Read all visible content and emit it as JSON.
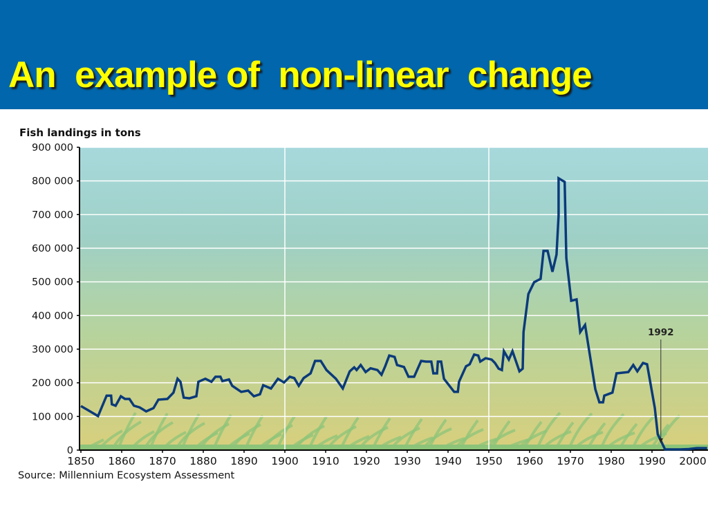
{
  "slide": {
    "title": "An  example of  non-linear  change",
    "accent_color": "#0166AB",
    "title_color": "#FFFF00"
  },
  "chart_data": {
    "type": "line",
    "title": "",
    "ylabel": "Fish landings in tons",
    "xlabel": "",
    "source": "Source: Millennium Ecosystem Assessment",
    "xlim": [
      1850,
      2003.5
    ],
    "ylim": [
      0,
      900000
    ],
    "x_ticks": [
      "1850",
      "1860",
      "1870",
      "1880",
      "1890",
      "1900",
      "1910",
      "1920",
      "1930",
      "1940",
      "1950",
      "1960",
      "1970",
      "1980",
      "1990",
      "2000"
    ],
    "y_ticks": [
      "0",
      "100 000",
      "200 000",
      "300 000",
      "400 000",
      "500 000",
      "600 000",
      "700 000",
      "800 000",
      "900 000"
    ],
    "grid": {
      "horizontal": true,
      "vertical_years": [
        1900,
        1950
      ]
    },
    "line_color": "#0B3A7A",
    "annotation": {
      "label": "1992",
      "year": 1992
    },
    "series": [
      {
        "name": "Fish landings",
        "points": [
          [
            1850,
            131000
          ],
          [
            1852,
            117000
          ],
          [
            1854.2,
            101000
          ],
          [
            1856.3,
            162000
          ],
          [
            1857.4,
            162000
          ],
          [
            1857.6,
            136000
          ],
          [
            1858.5,
            132000
          ],
          [
            1859.8,
            160000
          ],
          [
            1860.8,
            152000
          ],
          [
            1861.9,
            152000
          ],
          [
            1863,
            132000
          ],
          [
            1864.4,
            127000
          ],
          [
            1866,
            115000
          ],
          [
            1867.8,
            125000
          ],
          [
            1869,
            150000
          ],
          [
            1871.2,
            152000
          ],
          [
            1872.7,
            171000
          ],
          [
            1873.7,
            212000
          ],
          [
            1874.4,
            203000
          ],
          [
            1875.2,
            156000
          ],
          [
            1876.6,
            154000
          ],
          [
            1878.3,
            160000
          ],
          [
            1878.8,
            203000
          ],
          [
            1880.5,
            212000
          ],
          [
            1882,
            203000
          ],
          [
            1883,
            218000
          ],
          [
            1884.2,
            218000
          ],
          [
            1884.7,
            205000
          ],
          [
            1886.3,
            210000
          ],
          [
            1887.1,
            191000
          ],
          [
            1889.3,
            173000
          ],
          [
            1891,
            177000
          ],
          [
            1892.4,
            160000
          ],
          [
            1893.9,
            166000
          ],
          [
            1894.7,
            193000
          ],
          [
            1896.6,
            183000
          ],
          [
            1898.3,
            212000
          ],
          [
            1899.8,
            201000
          ],
          [
            1901.2,
            218000
          ],
          [
            1902.3,
            214000
          ],
          [
            1903.4,
            191000
          ],
          [
            1904.6,
            214000
          ],
          [
            1906.3,
            228000
          ],
          [
            1907.4,
            265000
          ],
          [
            1908.8,
            265000
          ],
          [
            1910.2,
            238000
          ],
          [
            1912.5,
            212000
          ],
          [
            1914.2,
            183000
          ],
          [
            1915.9,
            234000
          ],
          [
            1917,
            246000
          ],
          [
            1917.6,
            238000
          ],
          [
            1918.6,
            253000
          ],
          [
            1919.8,
            232000
          ],
          [
            1921,
            243000
          ],
          [
            1922.7,
            238000
          ],
          [
            1923.7,
            224000
          ],
          [
            1924.6,
            249000
          ],
          [
            1925.6,
            281000
          ],
          [
            1926.9,
            277000
          ],
          [
            1927.5,
            253000
          ],
          [
            1929.2,
            247000
          ],
          [
            1930.3,
            218000
          ],
          [
            1931.7,
            218000
          ],
          [
            1933.4,
            265000
          ],
          [
            1934.6,
            263000
          ],
          [
            1935.9,
            263000
          ],
          [
            1936.4,
            228000
          ],
          [
            1937.3,
            228000
          ],
          [
            1937.5,
            263000
          ],
          [
            1938.3,
            263000
          ],
          [
            1939,
            212000
          ],
          [
            1941.5,
            173000
          ],
          [
            1942.4,
            173000
          ],
          [
            1942.7,
            203000
          ],
          [
            1944.4,
            249000
          ],
          [
            1945.3,
            255000
          ],
          [
            1946.4,
            284000
          ],
          [
            1947.4,
            281000
          ],
          [
            1947.9,
            263000
          ],
          [
            1949.2,
            273000
          ],
          [
            1950.7,
            269000
          ],
          [
            1951.5,
            259000
          ],
          [
            1952.4,
            242000
          ],
          [
            1953.2,
            238000
          ],
          [
            1953.7,
            294000
          ],
          [
            1954.9,
            269000
          ],
          [
            1955.8,
            294000
          ],
          [
            1957.5,
            234000
          ],
          [
            1958.3,
            242000
          ],
          [
            1958.5,
            351000
          ],
          [
            1959.7,
            464000
          ],
          [
            1961.1,
            499000
          ],
          [
            1962.7,
            509000
          ],
          [
            1963.4,
            592000
          ],
          [
            1964.4,
            592000
          ],
          [
            1965.6,
            530000
          ],
          [
            1966.6,
            581000
          ],
          [
            1967.1,
            697000
          ],
          [
            1967.1,
            808000
          ],
          [
            1968.6,
            797000
          ],
          [
            1969,
            571000
          ],
          [
            1970.2,
            444000
          ],
          [
            1971.5,
            448000
          ],
          [
            1972.4,
            351000
          ],
          [
            1973.6,
            372000
          ],
          [
            1976.1,
            181000
          ],
          [
            1977.1,
            142000
          ],
          [
            1978,
            142000
          ],
          [
            1978.3,
            162000
          ],
          [
            1980.3,
            171000
          ],
          [
            1981.3,
            228000
          ],
          [
            1984.2,
            232000
          ],
          [
            1985.4,
            253000
          ],
          [
            1986.4,
            234000
          ],
          [
            1987.8,
            259000
          ],
          [
            1988.8,
            255000
          ],
          [
            1990.7,
            125000
          ],
          [
            1991.4,
            47000
          ],
          [
            1993.2,
            0
          ],
          [
            1997,
            0
          ],
          [
            1999,
            3000
          ],
          [
            2001,
            6000
          ],
          [
            2003.5,
            6000
          ]
        ]
      }
    ]
  }
}
